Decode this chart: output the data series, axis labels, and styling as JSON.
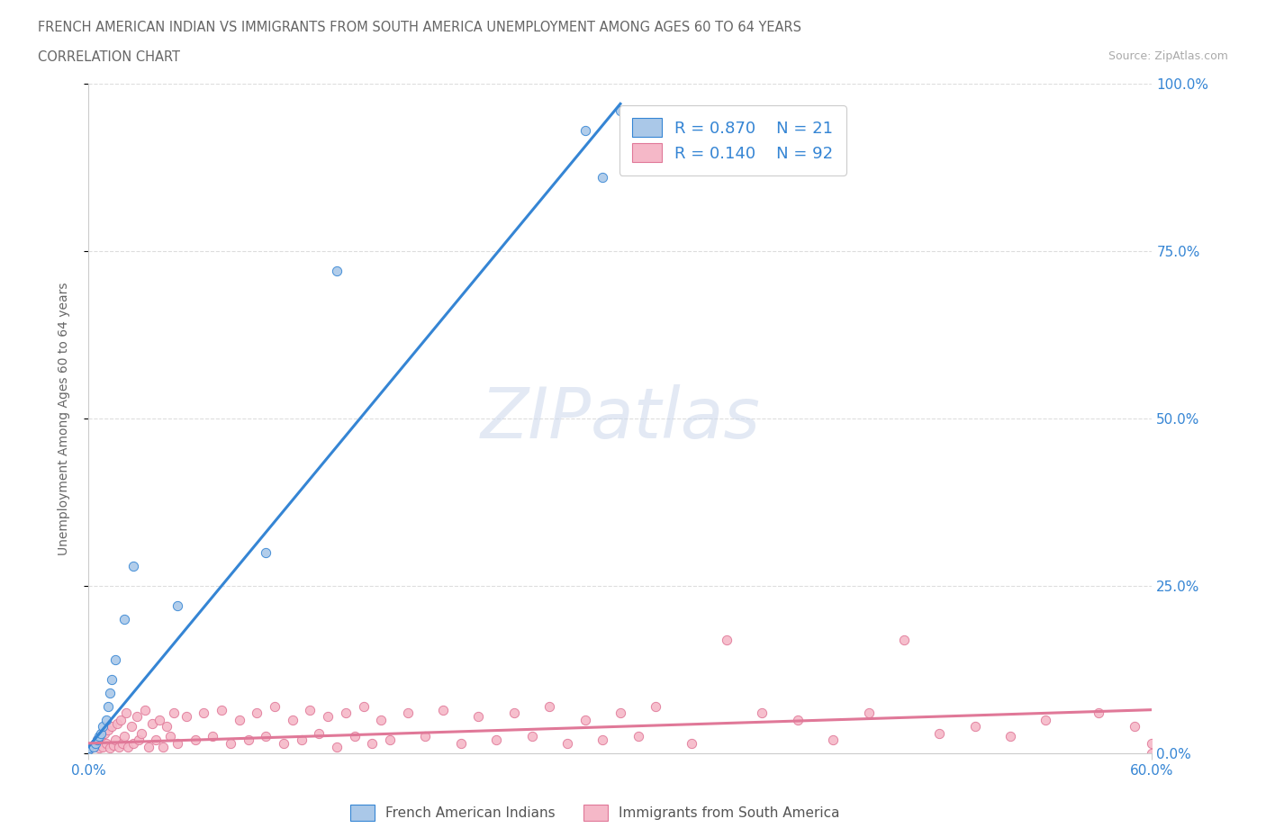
{
  "title_line1": "FRENCH AMERICAN INDIAN VS IMMIGRANTS FROM SOUTH AMERICA UNEMPLOYMENT AMONG AGES 60 TO 64 YEARS",
  "title_line2": "CORRELATION CHART",
  "source": "Source: ZipAtlas.com",
  "ylabel": "Unemployment Among Ages 60 to 64 years",
  "xmin": 0.0,
  "xmax": 0.6,
  "ymin": 0.0,
  "ymax": 1.0,
  "blue_color": "#aac8e8",
  "pink_color": "#f5b8c8",
  "blue_line_color": "#3585d4",
  "pink_line_color": "#e07898",
  "R_blue": 0.87,
  "N_blue": 21,
  "R_pink": 0.14,
  "N_pink": 92,
  "watermark": "ZIPatlas",
  "legend_label_blue": "French American Indians",
  "legend_label_pink": "Immigrants from South America",
  "blue_scatter_x": [
    0.0,
    0.0,
    0.003,
    0.004,
    0.005,
    0.006,
    0.007,
    0.008,
    0.01,
    0.011,
    0.012,
    0.013,
    0.015,
    0.02,
    0.025,
    0.05,
    0.1,
    0.14,
    0.28,
    0.29,
    0.3
  ],
  "blue_scatter_y": [
    0.005,
    0.008,
    0.01,
    0.015,
    0.02,
    0.025,
    0.03,
    0.04,
    0.05,
    0.07,
    0.09,
    0.11,
    0.14,
    0.2,
    0.28,
    0.22,
    0.3,
    0.72,
    0.93,
    0.86,
    0.96
  ],
  "pink_scatter_x": [
    0.0,
    0.001,
    0.002,
    0.003,
    0.004,
    0.005,
    0.006,
    0.007,
    0.008,
    0.009,
    0.01,
    0.011,
    0.012,
    0.013,
    0.014,
    0.015,
    0.016,
    0.017,
    0.018,
    0.019,
    0.02,
    0.021,
    0.022,
    0.024,
    0.025,
    0.027,
    0.028,
    0.03,
    0.032,
    0.034,
    0.036,
    0.038,
    0.04,
    0.042,
    0.044,
    0.046,
    0.048,
    0.05,
    0.055,
    0.06,
    0.065,
    0.07,
    0.075,
    0.08,
    0.085,
    0.09,
    0.095,
    0.1,
    0.105,
    0.11,
    0.115,
    0.12,
    0.125,
    0.13,
    0.135,
    0.14,
    0.145,
    0.15,
    0.155,
    0.16,
    0.165,
    0.17,
    0.18,
    0.19,
    0.2,
    0.21,
    0.22,
    0.23,
    0.24,
    0.25,
    0.26,
    0.27,
    0.28,
    0.29,
    0.3,
    0.31,
    0.32,
    0.34,
    0.36,
    0.38,
    0.4,
    0.42,
    0.44,
    0.46,
    0.48,
    0.5,
    0.52,
    0.54,
    0.57,
    0.59,
    0.6,
    0.6
  ],
  "pink_scatter_y": [
    0.005,
    0.008,
    0.01,
    0.012,
    0.015,
    0.02,
    0.008,
    0.025,
    0.01,
    0.03,
    0.015,
    0.035,
    0.008,
    0.04,
    0.012,
    0.02,
    0.045,
    0.01,
    0.05,
    0.015,
    0.025,
    0.06,
    0.01,
    0.04,
    0.015,
    0.055,
    0.02,
    0.03,
    0.065,
    0.01,
    0.045,
    0.02,
    0.05,
    0.01,
    0.04,
    0.025,
    0.06,
    0.015,
    0.055,
    0.02,
    0.06,
    0.025,
    0.065,
    0.015,
    0.05,
    0.02,
    0.06,
    0.025,
    0.07,
    0.015,
    0.05,
    0.02,
    0.065,
    0.03,
    0.055,
    0.01,
    0.06,
    0.025,
    0.07,
    0.015,
    0.05,
    0.02,
    0.06,
    0.025,
    0.065,
    0.015,
    0.055,
    0.02,
    0.06,
    0.025,
    0.07,
    0.015,
    0.05,
    0.02,
    0.06,
    0.025,
    0.07,
    0.015,
    0.17,
    0.06,
    0.05,
    0.02,
    0.06,
    0.17,
    0.03,
    0.04,
    0.025,
    0.05,
    0.06,
    0.04,
    0.0,
    0.015
  ],
  "blue_trend_x": [
    0.0,
    0.3
  ],
  "blue_trend_y": [
    0.01,
    0.97
  ],
  "pink_trend_x": [
    0.0,
    0.6
  ],
  "pink_trend_y": [
    0.015,
    0.065
  ]
}
